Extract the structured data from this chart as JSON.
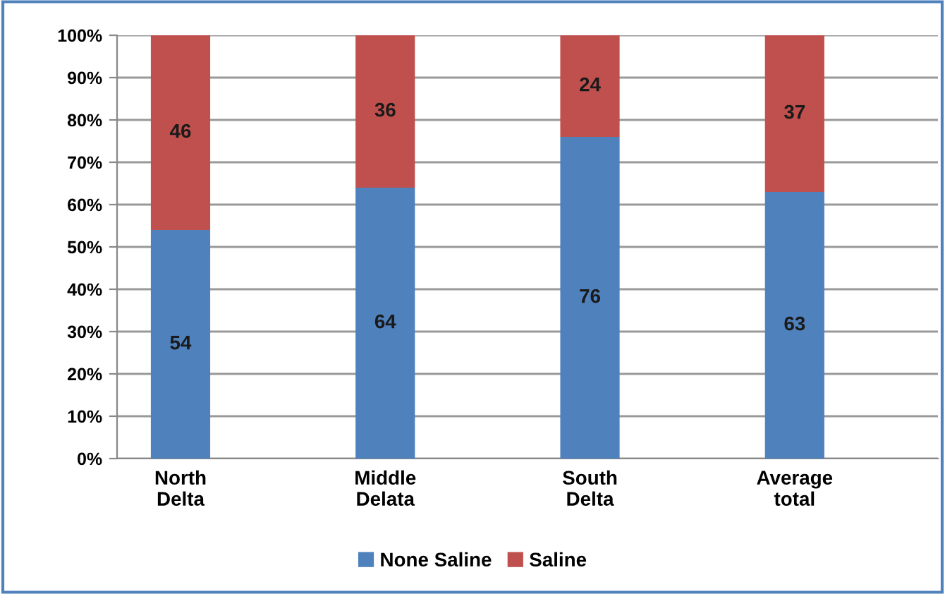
{
  "chart_data": {
    "type": "bar",
    "stacked": true,
    "categories": [
      "North\nDelta",
      "Middle\nDelata",
      "South\nDelta",
      "Average\ntotal"
    ],
    "series": [
      {
        "name": "None Saline",
        "color": "#4f81bd",
        "values": [
          54,
          64,
          76,
          63
        ]
      },
      {
        "name": "Saline",
        "color": "#c0504d",
        "values": [
          46,
          36,
          24,
          37
        ]
      }
    ],
    "ylim": [
      0,
      100
    ],
    "yticks": [
      {
        "value": 0,
        "label": "0%"
      },
      {
        "value": 10,
        "label": "10%"
      },
      {
        "value": 20,
        "label": "20%"
      },
      {
        "value": 30,
        "label": "30%"
      },
      {
        "value": 40,
        "label": "40%"
      },
      {
        "value": 50,
        "label": "50%"
      },
      {
        "value": 60,
        "label": "60%"
      },
      {
        "value": 70,
        "label": "70%"
      },
      {
        "value": 80,
        "label": "80%"
      },
      {
        "value": 90,
        "label": "90%"
      },
      {
        "value": 100,
        "label": "100%"
      }
    ],
    "grid": "y",
    "legend": "bottom",
    "data_labels": true
  }
}
